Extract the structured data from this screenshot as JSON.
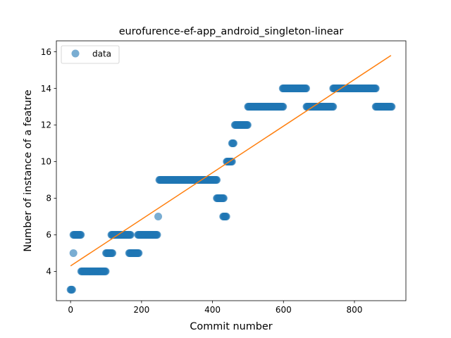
{
  "chart_data": {
    "type": "scatter",
    "title": "eurofurence-ef-app_android_singleton-linear",
    "xlabel": "Commit number",
    "ylabel": "Number of instance of a feature",
    "xlim": [
      -40,
      945
    ],
    "ylim": [
      2.4,
      16.6
    ],
    "xticks": [
      0,
      200,
      400,
      600,
      800
    ],
    "yticks": [
      4,
      6,
      8,
      10,
      12,
      14,
      16
    ],
    "grid": false,
    "legend": {
      "placement": "top-left",
      "entries": [
        "data"
      ]
    },
    "colors": {
      "data": "#1f77b4",
      "fit": "#ff7f0e"
    },
    "series": [
      {
        "name": "data",
        "kind": "scatter",
        "runs": [
          {
            "x_start": 0,
            "x_end": 5,
            "y": 3
          },
          {
            "x_start": 8,
            "x_end": 8,
            "y": 5
          },
          {
            "x_start": 8,
            "x_end": 30,
            "y": 6
          },
          {
            "x_start": 30,
            "x_end": 100,
            "y": 4
          },
          {
            "x_start": 100,
            "x_end": 118,
            "y": 5
          },
          {
            "x_start": 115,
            "x_end": 170,
            "y": 6
          },
          {
            "x_start": 165,
            "x_end": 192,
            "y": 5
          },
          {
            "x_start": 190,
            "x_end": 245,
            "y": 6
          },
          {
            "x_start": 247,
            "x_end": 247,
            "y": 7
          },
          {
            "x_start": 250,
            "x_end": 412,
            "y": 9
          },
          {
            "x_start": 412,
            "x_end": 432,
            "y": 8
          },
          {
            "x_start": 430,
            "x_end": 440,
            "y": 7
          },
          {
            "x_start": 440,
            "x_end": 455,
            "y": 10
          },
          {
            "x_start": 455,
            "x_end": 460,
            "y": 11
          },
          {
            "x_start": 463,
            "x_end": 500,
            "y": 12
          },
          {
            "x_start": 500,
            "x_end": 600,
            "y": 13
          },
          {
            "x_start": 598,
            "x_end": 665,
            "y": 14
          },
          {
            "x_start": 665,
            "x_end": 740,
            "y": 13
          },
          {
            "x_start": 740,
            "x_end": 860,
            "y": 14
          },
          {
            "x_start": 860,
            "x_end": 905,
            "y": 13
          }
        ]
      }
    ],
    "fit_line": {
      "x": [
        0,
        903
      ],
      "y": [
        4.3,
        15.8
      ]
    }
  }
}
